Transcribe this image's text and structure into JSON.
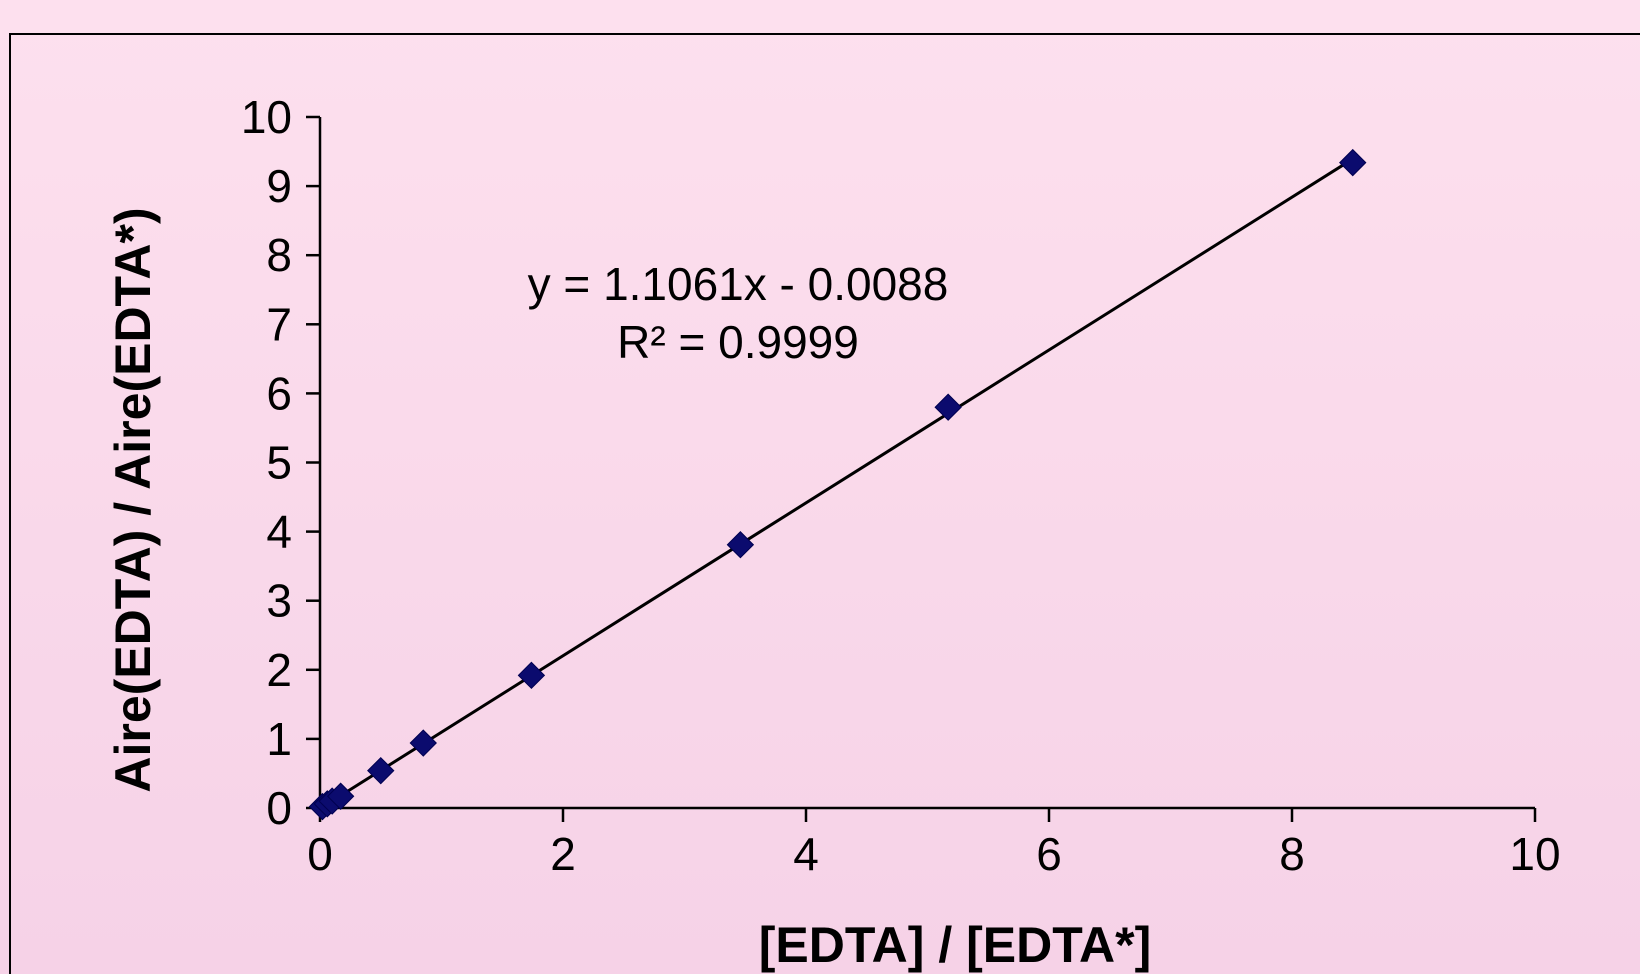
{
  "chart_data": {
    "type": "scatter",
    "xlabel": "[EDTA] / [EDTA*]",
    "ylabel": "Aire(EDTA) / Aire(EDTA*)",
    "xlim": [
      0,
      10
    ],
    "ylim": [
      0,
      10
    ],
    "x_ticks": [
      "0",
      "2",
      "4",
      "6",
      "8",
      "10"
    ],
    "y_ticks": [
      "0",
      "1",
      "2",
      "3",
      "4",
      "5",
      "6",
      "7",
      "8",
      "9",
      "10"
    ],
    "grid": false,
    "legend": "none",
    "series": [
      {
        "x": [
          0.02,
          0.06,
          0.1,
          0.17,
          0.5,
          0.85,
          1.74,
          3.46,
          5.17,
          8.5
        ],
        "y": [
          0.02,
          0.06,
          0.1,
          0.17,
          0.54,
          0.94,
          1.92,
          3.81,
          5.8,
          9.34
        ]
      }
    ],
    "trendline": {
      "slope": 1.1061,
      "intercept": -0.0088
    },
    "annotations": {
      "equation": "y = 1.1061x - 0.0088",
      "r_squared": "R² = 0.9999"
    },
    "colors": {
      "marker": "#0b0b6e",
      "line": "#000000",
      "frame": "#000000"
    }
  }
}
